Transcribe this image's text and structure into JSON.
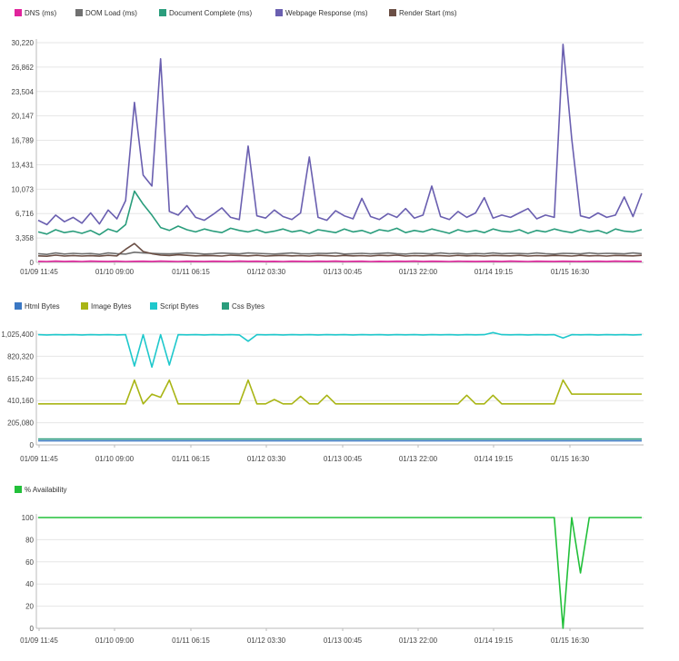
{
  "chart_data": [
    {
      "type": "line",
      "title": "",
      "legend_placement": "top-left",
      "grid": true,
      "ylim": [
        0,
        30220
      ],
      "y_ticks": [
        "0",
        "3,358",
        "6,716",
        "10,073",
        "13,431",
        "16,789",
        "20,147",
        "23,504",
        "26,862",
        "30,220"
      ],
      "x_ticks": [
        "01/09 11:45",
        "01/10 09:00",
        "01/11 06:15",
        "01/12 03:30",
        "01/13 00:45",
        "01/13 22:00",
        "01/14 19:15",
        "01/15 16:30"
      ],
      "series": [
        {
          "name": "DNS (ms)",
          "color": "#e0249c",
          "values": [
            150,
            120,
            180,
            140,
            160,
            130,
            170,
            150,
            140,
            160,
            130,
            150,
            160,
            140,
            170,
            150,
            130,
            160,
            150,
            140,
            160,
            150,
            140,
            170,
            150,
            160,
            140,
            150,
            130,
            160,
            150,
            140,
            160,
            150,
            170,
            140,
            150,
            160,
            130,
            150,
            140,
            160,
            150,
            170,
            140,
            160,
            150,
            130,
            160,
            150,
            140,
            150,
            160,
            140,
            170,
            150,
            130,
            160,
            150,
            140,
            160,
            150,
            140,
            150,
            160,
            140,
            170,
            150,
            160,
            140
          ]
        },
        {
          "name": "DOM Load (ms)",
          "color": "#707070",
          "values": [
            1200,
            1100,
            1300,
            1150,
            1250,
            1180,
            1220,
            1100,
            1300,
            1200,
            1150,
            1400,
            1300,
            1250,
            1200,
            1180,
            1220,
            1300,
            1250,
            1150,
            1200,
            1280,
            1220,
            1180,
            1300,
            1250,
            1200,
            1150,
            1220,
            1300,
            1200,
            1180,
            1250,
            1220,
            1300,
            1150,
            1200,
            1250,
            1180,
            1220,
            1300,
            1200,
            1150,
            1250,
            1220,
            1180,
            1300,
            1200,
            1250,
            1150,
            1220,
            1180,
            1300,
            1200,
            1250,
            1220,
            1180,
            1300,
            1200,
            1150,
            1250,
            1220,
            1180,
            1300,
            1200,
            1250,
            1220,
            1180,
            1300,
            1200
          ]
        },
        {
          "name": "Document Complete (ms)",
          "color": "#2a9d7c",
          "values": [
            4200,
            3900,
            4500,
            4100,
            4300,
            4000,
            4400,
            3800,
            4600,
            4200,
            5200,
            9800,
            8000,
            6500,
            4800,
            4400,
            5000,
            4500,
            4200,
            4600,
            4300,
            4100,
            4700,
            4400,
            4200,
            4500,
            4100,
            4300,
            4600,
            4200,
            4400,
            4000,
            4500,
            4300,
            4100,
            4600,
            4200,
            4400,
            4000,
            4500,
            4300,
            4700,
            4100,
            4400,
            4200,
            4600,
            4300,
            4000,
            4500,
            4200,
            4400,
            4100,
            4600,
            4300,
            4200,
            4500,
            4000,
            4400,
            4200,
            4600,
            4300,
            4100,
            4500,
            4200,
            4400,
            4000,
            4600,
            4300,
            4200,
            4500
          ]
        },
        {
          "name": "Webpage Response (ms)",
          "color": "#6a5fb0",
          "values": [
            5800,
            5200,
            6500,
            5600,
            6200,
            5400,
            6800,
            5300,
            7200,
            6000,
            8500,
            22000,
            12000,
            10500,
            28000,
            7000,
            6500,
            7800,
            6200,
            5800,
            6600,
            7500,
            6200,
            5900,
            16000,
            6400,
            6100,
            7200,
            6300,
            5900,
            6800,
            14500,
            6200,
            5800,
            7100,
            6400,
            6000,
            8800,
            6300,
            5900,
            6700,
            6200,
            7400,
            6100,
            6500,
            10500,
            6300,
            5900,
            7000,
            6200,
            6800,
            8900,
            6100,
            6500,
            6200,
            6800,
            7400,
            6000,
            6500,
            6200,
            30000,
            17000,
            6400,
            6100,
            6800,
            6200,
            6500,
            9000,
            6300,
            9500
          ]
        },
        {
          "name": "Render Start (ms)",
          "color": "#6b4f45",
          "values": [
            900,
            850,
            1000,
            880,
            950,
            870,
            920,
            860,
            980,
            900,
            1800,
            2600,
            1500,
            1200,
            1000,
            950,
            1050,
            980,
            900,
            950,
            920,
            880,
            1000,
            950,
            900,
            980,
            870,
            920,
            960,
            900,
            940,
            880,
            980,
            920,
            870,
            960,
            900,
            940,
            870,
            980,
            920,
            1000,
            880,
            940,
            900,
            960,
            920,
            870,
            980,
            900,
            940,
            880,
            960,
            920,
            900,
            980,
            870,
            940,
            900,
            960,
            920,
            880,
            980,
            900,
            940,
            870,
            960,
            920,
            900,
            980
          ]
        }
      ]
    },
    {
      "type": "line",
      "title": "",
      "legend_placement": "top-left",
      "grid": true,
      "ylim": [
        0,
        1025400
      ],
      "y_ticks": [
        "0",
        "205,080",
        "410,160",
        "615,240",
        "820,320",
        "1,025,400"
      ],
      "x_ticks": [
        "01/09 11:45",
        "01/10 09:00",
        "01/11 06:15",
        "01/12 03:30",
        "01/13 00:45",
        "01/13 22:00",
        "01/14 19:15",
        "01/15 16:30"
      ],
      "series": [
        {
          "name": "Html Bytes",
          "color": "#3b78c4",
          "values": [
            38000,
            38000,
            38000,
            38000,
            38000,
            38000,
            38000,
            38000,
            38000,
            38000,
            38000,
            38000,
            38000,
            38000,
            38000,
            38000,
            38000,
            38000,
            38000,
            38000,
            38000,
            38000,
            38000,
            38000,
            38000,
            38000,
            38000,
            38000,
            38000,
            38000,
            38000,
            38000,
            38000,
            38000,
            38000,
            38000,
            38000,
            38000,
            38000,
            38000,
            38000,
            38000,
            38000,
            38000,
            38000,
            38000,
            38000,
            38000,
            38000,
            38000,
            38000,
            38000,
            38000,
            38000,
            38000,
            38000,
            38000,
            38000,
            38000,
            38000,
            38000,
            38000,
            38000,
            38000,
            38000,
            38000,
            38000,
            38000,
            38000,
            38000
          ]
        },
        {
          "name": "Image Bytes",
          "color": "#a9b515",
          "values": [
            380000,
            380000,
            380000,
            380000,
            380000,
            380000,
            380000,
            380000,
            380000,
            380000,
            380000,
            600000,
            380000,
            470000,
            440000,
            600000,
            380000,
            380000,
            380000,
            380000,
            380000,
            380000,
            380000,
            380000,
            600000,
            380000,
            380000,
            420000,
            380000,
            380000,
            450000,
            380000,
            380000,
            460000,
            380000,
            380000,
            380000,
            380000,
            380000,
            380000,
            380000,
            380000,
            380000,
            380000,
            380000,
            380000,
            380000,
            380000,
            380000,
            460000,
            380000,
            380000,
            460000,
            380000,
            380000,
            380000,
            380000,
            380000,
            380000,
            380000,
            600000,
            470000,
            470000,
            470000,
            470000,
            470000,
            470000,
            470000,
            470000,
            470000
          ]
        },
        {
          "name": "Script Bytes",
          "color": "#1fc8cc",
          "values": [
            1020000,
            1018000,
            1020000,
            1019000,
            1020000,
            1018000,
            1020000,
            1019000,
            1020000,
            1018000,
            1020000,
            730000,
            1020000,
            720000,
            1020000,
            740000,
            1020000,
            1019000,
            1020000,
            1018000,
            1020000,
            1019000,
            1020000,
            1018000,
            960000,
            1020000,
            1019000,
            1020000,
            1018000,
            1020000,
            1019000,
            1020000,
            1018000,
            1020000,
            1019000,
            1020000,
            1018000,
            1020000,
            1019000,
            1020000,
            1018000,
            1020000,
            1019000,
            1020000,
            1018000,
            1020000,
            1019000,
            1020000,
            1018000,
            1020000,
            1019000,
            1020000,
            1040000,
            1020000,
            1019000,
            1020000,
            1018000,
            1020000,
            1019000,
            1020000,
            990000,
            1020000,
            1019000,
            1020000,
            1018000,
            1020000,
            1019000,
            1020000,
            1018000,
            1020000
          ]
        },
        {
          "name": "Css Bytes",
          "color": "#2a9d7c",
          "values": [
            55000,
            55000,
            55000,
            55000,
            55000,
            55000,
            55000,
            55000,
            55000,
            55000,
            55000,
            55000,
            55000,
            55000,
            55000,
            55000,
            55000,
            55000,
            55000,
            55000,
            55000,
            55000,
            55000,
            55000,
            55000,
            55000,
            55000,
            55000,
            55000,
            55000,
            55000,
            55000,
            55000,
            55000,
            55000,
            55000,
            55000,
            55000,
            55000,
            55000,
            55000,
            55000,
            55000,
            55000,
            55000,
            55000,
            55000,
            55000,
            55000,
            55000,
            55000,
            55000,
            55000,
            55000,
            55000,
            55000,
            55000,
            55000,
            55000,
            55000,
            55000,
            55000,
            55000,
            55000,
            55000,
            55000,
            55000,
            55000,
            55000,
            55000
          ]
        }
      ]
    },
    {
      "type": "line",
      "title": "",
      "legend_placement": "top-left",
      "grid": true,
      "ylim": [
        0,
        100
      ],
      "y_ticks": [
        "0",
        "20",
        "40",
        "60",
        "80",
        "100"
      ],
      "x_ticks": [
        "01/09 11:45",
        "01/10 09:00",
        "01/11 06:15",
        "01/12 03:30",
        "01/13 00:45",
        "01/13 22:00",
        "01/14 19:15",
        "01/15 16:30"
      ],
      "series": [
        {
          "name": "% Availability",
          "color": "#22c03a",
          "values": [
            100,
            100,
            100,
            100,
            100,
            100,
            100,
            100,
            100,
            100,
            100,
            100,
            100,
            100,
            100,
            100,
            100,
            100,
            100,
            100,
            100,
            100,
            100,
            100,
            100,
            100,
            100,
            100,
            100,
            100,
            100,
            100,
            100,
            100,
            100,
            100,
            100,
            100,
            100,
            100,
            100,
            100,
            100,
            100,
            100,
            100,
            100,
            100,
            100,
            100,
            100,
            100,
            100,
            100,
            100,
            100,
            100,
            100,
            100,
            100,
            0,
            100,
            50,
            100,
            100,
            100,
            100,
            100,
            100,
            100
          ]
        }
      ]
    }
  ]
}
